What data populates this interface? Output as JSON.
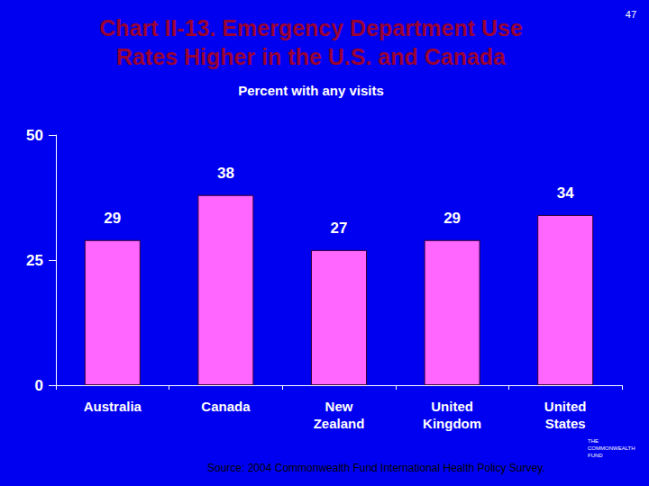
{
  "chart_data": {
    "type": "bar",
    "title": "Chart II-13. Emergency Department Use\nRates Higher in the U.S. and Canada",
    "subtitle": "Percent with any visits",
    "categories": [
      "Australia",
      "Canada",
      "New Zealand",
      "United Kingdom",
      "United States"
    ],
    "values": [
      29,
      38,
      27,
      29,
      34
    ],
    "color": "#ff66ff",
    "ylim": [
      0,
      50
    ],
    "yticks": [
      0,
      25,
      50
    ],
    "grid": false,
    "data_labels": true,
    "source": "Source: 2004 Commonwealth Fund International Health Policy Survey.",
    "annotations": [
      "47",
      "THE COMMONWEALTH FUND"
    ]
  }
}
